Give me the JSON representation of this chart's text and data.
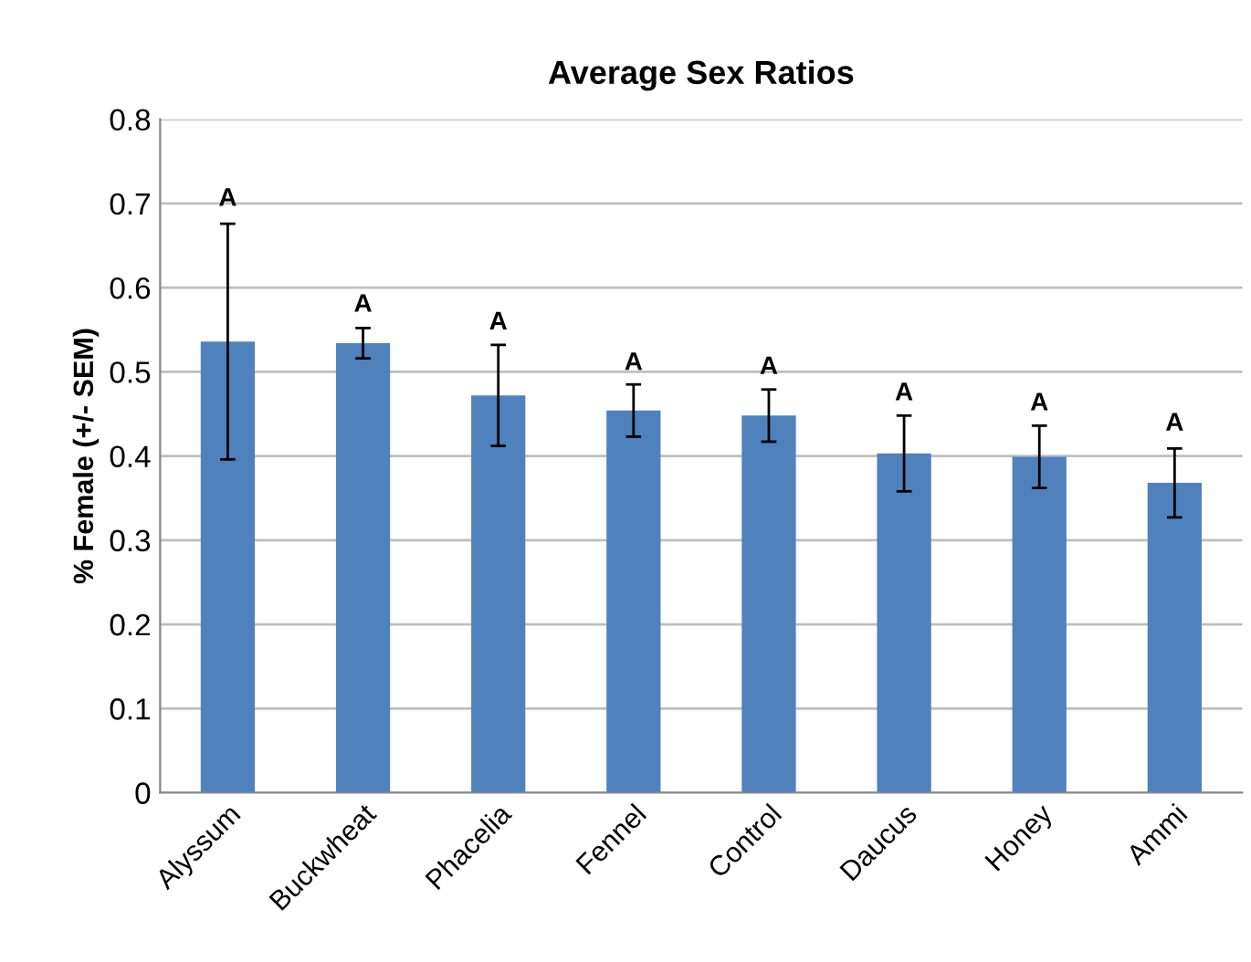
{
  "chart_data": {
    "type": "bar",
    "title": "Average Sex Ratios",
    "ylabel": "% Female (+/- SEM)",
    "categories": [
      "Alyssum",
      "Buckwheat",
      "Phacelia",
      "Fennel",
      "Control",
      "Daucus",
      "Honey",
      "Ammi"
    ],
    "values": [
      0.536,
      0.534,
      0.472,
      0.454,
      0.448,
      0.403,
      0.399,
      0.368
    ],
    "errors": [
      0.14,
      0.018,
      0.06,
      0.031,
      0.031,
      0.045,
      0.037,
      0.041
    ],
    "color": "#4f81bd",
    "ylim": [
      0,
      0.8
    ],
    "yticks": [
      0,
      0.1,
      0.2,
      0.3,
      0.4,
      0.5,
      0.6,
      0.7,
      0.8
    ],
    "grid": "y",
    "annotations": [
      {
        "text": "A",
        "x": "Alyssum",
        "y": 0.679
      },
      {
        "text": "A",
        "x": "Buckwheat",
        "y": 0.553
      },
      {
        "text": "A",
        "x": "Phacelia",
        "y": 0.532
      },
      {
        "text": "A",
        "x": "Fennel",
        "y": 0.484
      },
      {
        "text": "A",
        "x": "Control",
        "y": 0.479
      },
      {
        "text": "A",
        "x": "Daucus",
        "y": 0.448
      },
      {
        "text": "A",
        "x": "Honey",
        "y": 0.436
      },
      {
        "text": "A",
        "x": "Ammi",
        "y": 0.412
      }
    ]
  }
}
